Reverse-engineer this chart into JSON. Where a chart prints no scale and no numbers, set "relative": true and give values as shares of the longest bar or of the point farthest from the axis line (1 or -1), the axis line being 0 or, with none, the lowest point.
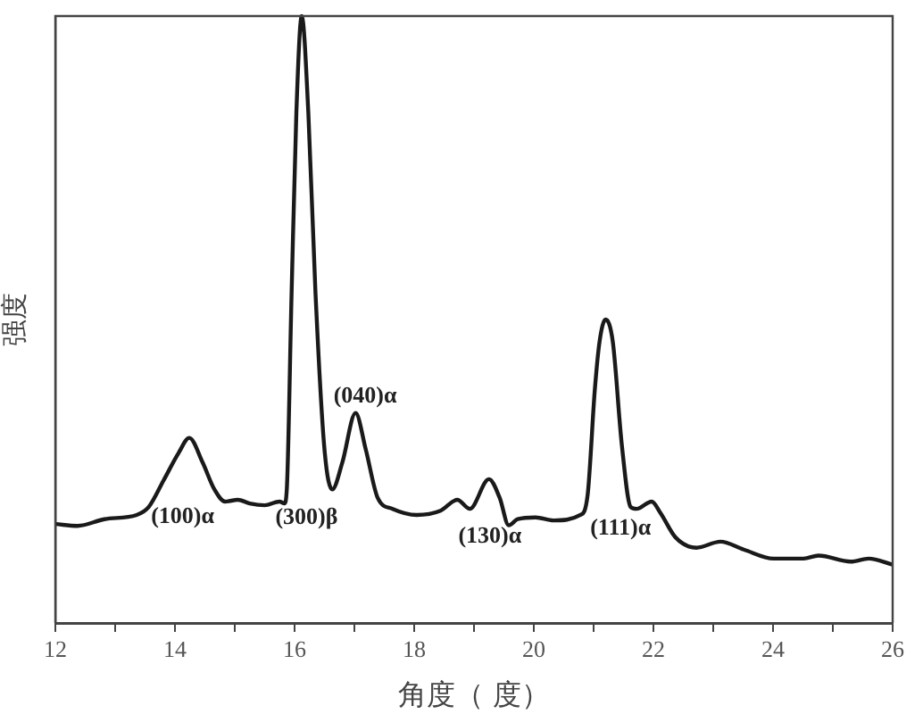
{
  "chart_data": {
    "type": "line",
    "xlabel": "角度（ 度）",
    "ylabel": "强度",
    "relative": true,
    "grid": false,
    "legend": false,
    "marker": "none",
    "line_style": "solid",
    "xlim": [
      12,
      26
    ],
    "xticks": [
      12,
      {
        "value": 13,
        "label": null
      },
      14,
      {
        "value": 15,
        "label": null
      },
      16,
      {
        "value": 17,
        "label": null
      },
      18,
      {
        "value": 19,
        "label": null
      },
      20,
      {
        "value": 21,
        "label": null
      },
      22,
      {
        "value": 23,
        "label": null
      },
      24,
      {
        "value": 25,
        "label": null
      },
      26
    ],
    "x": [
      12.0,
      12.37,
      12.82,
      13.36,
      13.56,
      13.81,
      14.06,
      14.24,
      14.46,
      14.66,
      14.84,
      15.05,
      15.25,
      15.5,
      15.75,
      15.83,
      15.87,
      15.95,
      16.03,
      16.12,
      16.23,
      16.35,
      16.5,
      16.63,
      16.8,
      17.02,
      17.19,
      17.39,
      17.64,
      18.04,
      18.44,
      18.72,
      18.93,
      19.25,
      19.43,
      19.58,
      19.73,
      20.03,
      20.33,
      20.78,
      20.9,
      21.02,
      21.1,
      21.2,
      21.32,
      21.47,
      21.62,
      21.72,
      21.97,
      22.12,
      22.37,
      22.72,
      23.12,
      23.51,
      24.01,
      24.51,
      24.76,
      25.3,
      25.6,
      26.0
    ],
    "series": [
      {
        "color": "#1a1a1a",
        "values": [
          0.163,
          0.16,
          0.171,
          0.178,
          0.191,
          0.235,
          0.28,
          0.305,
          0.265,
          0.22,
          0.2,
          0.203,
          0.197,
          0.194,
          0.2,
          0.197,
          0.22,
          0.543,
          0.841,
          1,
          0.841,
          0.543,
          0.286,
          0.22,
          0.265,
          0.346,
          0.286,
          0.206,
          0.188,
          0.178,
          0.185,
          0.203,
          0.188,
          0.237,
          0.206,
          0.161,
          0.171,
          0.174,
          0.169,
          0.178,
          0.211,
          0.384,
          0.464,
          0.5,
          0.464,
          0.295,
          0.191,
          0.188,
          0.2,
          0.181,
          0.141,
          0.124,
          0.134,
          0.121,
          0.106,
          0.106,
          0.111,
          0.101,
          0.106,
          0.096
        ]
      }
    ],
    "annotations": [
      "(100)α",
      "(300)β",
      "(040)α",
      "(130)α",
      "(111)α"
    ]
  }
}
